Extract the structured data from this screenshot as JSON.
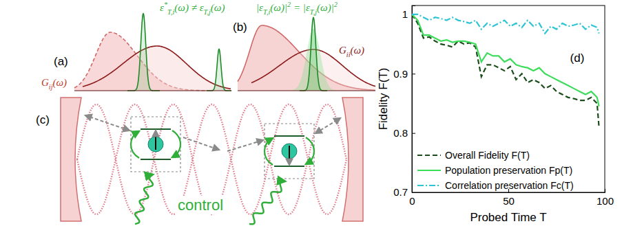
{
  "chart_data": {
    "type": "line",
    "annotations": [
      "(d)"
    ],
    "x_label": "Probed Time T",
    "y_label": "Fidelity F(T)",
    "x": [
      0,
      3,
      6,
      9,
      12,
      15,
      18,
      21,
      24,
      27,
      30,
      33,
      36,
      39,
      42,
      45,
      48,
      51,
      54,
      57,
      60,
      63,
      66,
      69,
      72,
      75,
      78,
      81,
      84,
      87,
      90,
      93,
      96,
      97
    ],
    "xlim": [
      0,
      100
    ],
    "xticks": [
      0,
      50,
      100
    ],
    "ylim": [
      0.7,
      1.015
    ],
    "yticks": [
      0.7,
      0.8,
      0.9,
      1
    ],
    "legend": "lower left",
    "series": [
      {
        "name": "Overall Fidelity F(T)",
        "color": "#1b4d1b",
        "line_style": "dashed",
        "values": [
          1,
          0.985,
          0.96,
          0.962,
          0.955,
          0.95,
          0.948,
          0.945,
          0.955,
          0.95,
          0.952,
          0.945,
          0.895,
          0.915,
          0.915,
          0.91,
          0.905,
          0.912,
          0.89,
          0.9,
          0.885,
          0.89,
          0.885,
          0.875,
          0.88,
          0.87,
          0.865,
          0.86,
          0.858,
          0.855,
          0.855,
          0.86,
          0.85,
          0.81
        ]
      },
      {
        "name": "Population preservation Fp(T)",
        "color": "#3ddc5a",
        "line_style": "solid",
        "values": [
          1,
          0.99,
          0.965,
          0.965,
          0.96,
          0.955,
          0.957,
          0.953,
          0.955,
          0.955,
          0.953,
          0.95,
          0.92,
          0.935,
          0.93,
          0.93,
          0.92,
          0.925,
          0.915,
          0.912,
          0.91,
          0.905,
          0.91,
          0.9,
          0.895,
          0.89,
          0.885,
          0.88,
          0.875,
          0.87,
          0.865,
          0.87,
          0.86,
          0.845
        ]
      },
      {
        "name": "Correlation preservation Fc(T)",
        "color": "#2ec4d4",
        "line_style": "dashdot",
        "values": [
          1,
          1,
          0.995,
          0.99,
          0.995,
          0.993,
          0.99,
          0.995,
          0.99,
          0.988,
          0.985,
          0.99,
          0.975,
          0.985,
          0.98,
          0.985,
          0.99,
          0.98,
          0.985,
          0.978,
          0.99,
          0.98,
          0.985,
          0.968,
          0.98,
          0.975,
          0.985,
          0.98,
          0.982,
          0.985,
          0.975,
          0.982,
          0.978,
          0.968
        ]
      }
    ]
  },
  "schematic": {
    "panel_a": {
      "label": "(a)",
      "pulse_label": [
        {
          "text": "ε"
        },
        {
          "sup": "*"
        },
        {
          "sub": "T,i"
        },
        {
          "text": "(ω) ≠ ε"
        },
        {
          "sub": "T,j"
        },
        {
          "text": "(ω)"
        }
      ],
      "spectrum_label": [
        {
          "text": "G"
        },
        {
          "sub": "ij"
        },
        {
          "text": "(ω)"
        }
      ]
    },
    "panel_b": {
      "label": "(b)",
      "pulse_label": [
        {
          "text": "|ε"
        },
        {
          "sub": "T,i"
        },
        {
          "text": "(ω)|"
        },
        {
          "sup": "2"
        },
        {
          "text": " = |ε"
        },
        {
          "sub": "T,j"
        },
        {
          "text": "(ω)|"
        },
        {
          "sup": "2"
        }
      ],
      "spectrum_label": [
        {
          "text": "G"
        },
        {
          "sub": "ii"
        },
        {
          "text": "(ω)"
        }
      ]
    },
    "panel_c": {
      "label": "(c)",
      "control_label": "control"
    }
  }
}
